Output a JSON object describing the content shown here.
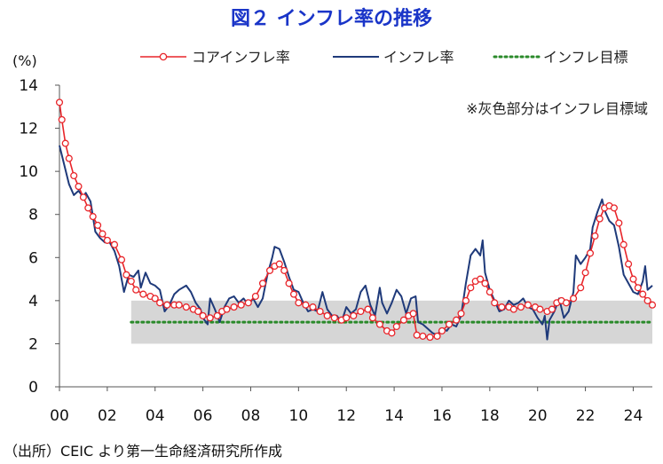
{
  "title": "図２ インフレ率の推移",
  "source": "（出所）CEIC より第一生命経済研究所作成",
  "chart_data": {
    "type": "line",
    "ylabel": "(%)",
    "ylim": [
      0,
      14
    ],
    "yticks": [
      "0",
      "2",
      "4",
      "6",
      "8",
      "10",
      "12",
      "14"
    ],
    "xlim": [
      2000,
      2024.8
    ],
    "xticks": [
      "00",
      "02",
      "04",
      "06",
      "08",
      "10",
      "12",
      "14",
      "16",
      "18",
      "20",
      "22",
      "24"
    ],
    "annotation": "※灰色部分はインフレ目標域",
    "target_band": {
      "from": 2003,
      "to": 2024.8,
      "low": 2,
      "high": 4
    },
    "legend": {
      "position": "top"
    },
    "series": [
      {
        "name": "コアインフレ率",
        "color": "#e8252a",
        "style": "line-circle",
        "points": [
          [
            2000,
            13.2
          ],
          [
            2000.1,
            12.4
          ],
          [
            2000.25,
            11.3
          ],
          [
            2000.4,
            10.6
          ],
          [
            2000.6,
            9.8
          ],
          [
            2000.8,
            9.3
          ],
          [
            2001,
            8.8
          ],
          [
            2001.2,
            8.3
          ],
          [
            2001.4,
            7.9
          ],
          [
            2001.6,
            7.5
          ],
          [
            2001.8,
            7.1
          ],
          [
            2002,
            6.8
          ],
          [
            2002.3,
            6.6
          ],
          [
            2002.6,
            5.9
          ],
          [
            2002.8,
            5.2
          ],
          [
            2003,
            4.9
          ],
          [
            2003.2,
            4.5
          ],
          [
            2003.5,
            4.3
          ],
          [
            2003.8,
            4.2
          ],
          [
            2004,
            4.1
          ],
          [
            2004.2,
            3.9
          ],
          [
            2004.5,
            3.8
          ],
          [
            2004.8,
            3.8
          ],
          [
            2005,
            3.8
          ],
          [
            2005.3,
            3.7
          ],
          [
            2005.6,
            3.6
          ],
          [
            2005.8,
            3.5
          ],
          [
            2006,
            3.3
          ],
          [
            2006.3,
            3.2
          ],
          [
            2006.6,
            3.3
          ],
          [
            2006.8,
            3.5
          ],
          [
            2007,
            3.6
          ],
          [
            2007.3,
            3.7
          ],
          [
            2007.6,
            3.8
          ],
          [
            2007.9,
            3.9
          ],
          [
            2008.2,
            4.2
          ],
          [
            2008.5,
            4.8
          ],
          [
            2008.8,
            5.4
          ],
          [
            2009,
            5.6
          ],
          [
            2009.2,
            5.7
          ],
          [
            2009.4,
            5.4
          ],
          [
            2009.6,
            4.8
          ],
          [
            2009.8,
            4.3
          ],
          [
            2010,
            3.9
          ],
          [
            2010.3,
            3.8
          ],
          [
            2010.6,
            3.7
          ],
          [
            2010.9,
            3.5
          ],
          [
            2011.2,
            3.3
          ],
          [
            2011.5,
            3.2
          ],
          [
            2011.8,
            3.1
          ],
          [
            2012,
            3.2
          ],
          [
            2012.3,
            3.3
          ],
          [
            2012.6,
            3.5
          ],
          [
            2012.9,
            3.6
          ],
          [
            2013.1,
            3.2
          ],
          [
            2013.4,
            2.9
          ],
          [
            2013.7,
            2.6
          ],
          [
            2013.9,
            2.5
          ],
          [
            2014.1,
            2.8
          ],
          [
            2014.4,
            3.1
          ],
          [
            2014.6,
            3.3
          ],
          [
            2014.8,
            3.4
          ],
          [
            2014.95,
            2.4
          ],
          [
            2015.2,
            2.35
          ],
          [
            2015.5,
            2.3
          ],
          [
            2015.8,
            2.35
          ],
          [
            2016,
            2.6
          ],
          [
            2016.3,
            2.9
          ],
          [
            2016.6,
            3.1
          ],
          [
            2016.8,
            3.4
          ],
          [
            2017,
            4.0
          ],
          [
            2017.2,
            4.6
          ],
          [
            2017.4,
            4.9
          ],
          [
            2017.6,
            5.0
          ],
          [
            2017.8,
            4.8
          ],
          [
            2018,
            4.4
          ],
          [
            2018.2,
            3.9
          ],
          [
            2018.5,
            3.7
          ],
          [
            2018.8,
            3.7
          ],
          [
            2019,
            3.6
          ],
          [
            2019.3,
            3.7
          ],
          [
            2019.6,
            3.8
          ],
          [
            2019.9,
            3.7
          ],
          [
            2020.1,
            3.6
          ],
          [
            2020.4,
            3.5
          ],
          [
            2020.6,
            3.6
          ],
          [
            2020.8,
            3.9
          ],
          [
            2021,
            4.0
          ],
          [
            2021.2,
            3.9
          ],
          [
            2021.5,
            4.1
          ],
          [
            2021.8,
            4.6
          ],
          [
            2022,
            5.3
          ],
          [
            2022.2,
            6.2
          ],
          [
            2022.4,
            7.0
          ],
          [
            2022.6,
            7.8
          ],
          [
            2022.8,
            8.3
          ],
          [
            2023,
            8.4
          ],
          [
            2023.2,
            8.3
          ],
          [
            2023.4,
            7.6
          ],
          [
            2023.6,
            6.6
          ],
          [
            2023.8,
            5.7
          ],
          [
            2024,
            5.0
          ],
          [
            2024.2,
            4.6
          ],
          [
            2024.4,
            4.3
          ],
          [
            2024.6,
            4.0
          ],
          [
            2024.8,
            3.8
          ]
        ]
      },
      {
        "name": "インフレ率",
        "color": "#1f3a7a",
        "style": "line",
        "points": [
          [
            2000,
            11.2
          ],
          [
            2000.2,
            10.3
          ],
          [
            2000.4,
            9.4
          ],
          [
            2000.6,
            8.9
          ],
          [
            2000.8,
            9.1
          ],
          [
            2001,
            8.8
          ],
          [
            2001.1,
            9.0
          ],
          [
            2001.3,
            8.6
          ],
          [
            2001.5,
            7.2
          ],
          [
            2001.7,
            6.9
          ],
          [
            2001.9,
            6.7
          ],
          [
            2002.1,
            6.7
          ],
          [
            2002.3,
            6.3
          ],
          [
            2002.5,
            5.6
          ],
          [
            2002.7,
            4.4
          ],
          [
            2002.9,
            5.2
          ],
          [
            2003.1,
            5.1
          ],
          [
            2003.3,
            5.4
          ],
          [
            2003.4,
            4.6
          ],
          [
            2003.6,
            5.3
          ],
          [
            2003.8,
            4.8
          ],
          [
            2004,
            4.7
          ],
          [
            2004.2,
            4.5
          ],
          [
            2004.4,
            3.5
          ],
          [
            2004.6,
            3.8
          ],
          [
            2004.8,
            4.3
          ],
          [
            2005,
            4.5
          ],
          [
            2005.3,
            4.7
          ],
          [
            2005.5,
            4.4
          ],
          [
            2005.7,
            3.9
          ],
          [
            2005.9,
            3.6
          ],
          [
            2006,
            3.2
          ],
          [
            2006.2,
            2.9
          ],
          [
            2006.3,
            4.1
          ],
          [
            2006.5,
            3.6
          ],
          [
            2006.7,
            3.0
          ],
          [
            2006.9,
            3.7
          ],
          [
            2007.1,
            4.1
          ],
          [
            2007.3,
            4.2
          ],
          [
            2007.5,
            3.9
          ],
          [
            2007.7,
            4.1
          ],
          [
            2007.9,
            3.8
          ],
          [
            2008.1,
            4.1
          ],
          [
            2008.3,
            3.7
          ],
          [
            2008.5,
            4.1
          ],
          [
            2008.7,
            5.2
          ],
          [
            2008.9,
            6.0
          ],
          [
            2009,
            6.5
          ],
          [
            2009.2,
            6.4
          ],
          [
            2009.4,
            5.8
          ],
          [
            2009.6,
            5.1
          ],
          [
            2009.8,
            4.5
          ],
          [
            2010,
            4.4
          ],
          [
            2010.2,
            3.9
          ],
          [
            2010.4,
            3.5
          ],
          [
            2010.6,
            3.6
          ],
          [
            2010.8,
            3.5
          ],
          [
            2011,
            4.4
          ],
          [
            2011.2,
            3.6
          ],
          [
            2011.4,
            3.3
          ],
          [
            2011.6,
            3.3
          ],
          [
            2011.8,
            3.0
          ],
          [
            2012,
            3.7
          ],
          [
            2012.2,
            3.4
          ],
          [
            2012.4,
            3.6
          ],
          [
            2012.6,
            4.4
          ],
          [
            2012.8,
            4.7
          ],
          [
            2013,
            3.8
          ],
          [
            2013.2,
            3.3
          ],
          [
            2013.4,
            4.6
          ],
          [
            2013.5,
            3.9
          ],
          [
            2013.7,
            3.4
          ],
          [
            2013.9,
            3.9
          ],
          [
            2014.1,
            4.5
          ],
          [
            2014.3,
            4.2
          ],
          [
            2014.5,
            3.4
          ],
          [
            2014.7,
            4.1
          ],
          [
            2014.9,
            4.2
          ],
          [
            2015.0,
            3.0
          ],
          [
            2015.2,
            2.9
          ],
          [
            2015.4,
            2.7
          ],
          [
            2015.6,
            2.5
          ],
          [
            2015.8,
            2.4
          ],
          [
            2016,
            2.7
          ],
          [
            2016.2,
            2.6
          ],
          [
            2016.4,
            2.9
          ],
          [
            2016.6,
            2.8
          ],
          [
            2016.8,
            3.3
          ],
          [
            2017,
            4.8
          ],
          [
            2017.2,
            6.1
          ],
          [
            2017.4,
            6.4
          ],
          [
            2017.6,
            6.1
          ],
          [
            2017.7,
            6.8
          ],
          [
            2017.8,
            5.3
          ],
          [
            2018,
            4.5
          ],
          [
            2018.2,
            4.0
          ],
          [
            2018.4,
            3.5
          ],
          [
            2018.6,
            3.6
          ],
          [
            2018.8,
            4.0
          ],
          [
            2019,
            3.8
          ],
          [
            2019.2,
            3.9
          ],
          [
            2019.4,
            4.1
          ],
          [
            2019.6,
            3.7
          ],
          [
            2019.8,
            3.6
          ],
          [
            2020,
            3.2
          ],
          [
            2020.2,
            2.9
          ],
          [
            2020.3,
            3.3
          ],
          [
            2020.4,
            2.2
          ],
          [
            2020.5,
            3.1
          ],
          [
            2020.7,
            3.5
          ],
          [
            2020.9,
            4.1
          ],
          [
            2021.1,
            3.2
          ],
          [
            2021.3,
            3.5
          ],
          [
            2021.5,
            4.4
          ],
          [
            2021.6,
            6.1
          ],
          [
            2021.8,
            5.7
          ],
          [
            2022,
            6.0
          ],
          [
            2022.2,
            6.4
          ],
          [
            2022.3,
            7.4
          ],
          [
            2022.5,
            8.1
          ],
          [
            2022.7,
            8.7
          ],
          [
            2022.8,
            8.2
          ],
          [
            2023,
            7.7
          ],
          [
            2023.2,
            7.5
          ],
          [
            2023.4,
            6.5
          ],
          [
            2023.6,
            5.2
          ],
          [
            2023.8,
            4.8
          ],
          [
            2024,
            4.4
          ],
          [
            2024.2,
            4.3
          ],
          [
            2024.4,
            4.9
          ],
          [
            2024.5,
            5.6
          ],
          [
            2024.6,
            4.5
          ],
          [
            2024.8,
            4.7
          ]
        ]
      },
      {
        "name": "インフレ目標",
        "color": "#2a8a2a",
        "style": "dotted",
        "points": [
          [
            2003,
            3
          ],
          [
            2024.8,
            3
          ]
        ]
      }
    ]
  }
}
